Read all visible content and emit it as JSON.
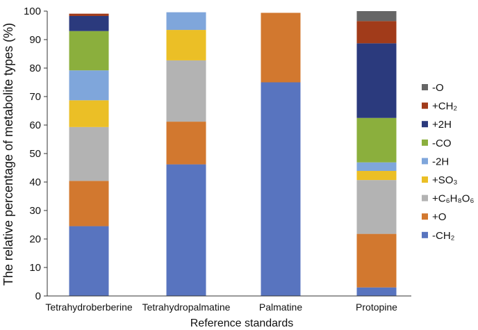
{
  "chart_data": {
    "type": "bar",
    "stacked": true,
    "title": "",
    "xlabel": "Reference standards",
    "ylabel": "The relative percentage of metabolite types (%)",
    "ylim": [
      0,
      100
    ],
    "yticks": [
      "0",
      "10",
      "20",
      "30",
      "40",
      "50",
      "60",
      "70",
      "80",
      "90",
      "100"
    ],
    "categories": [
      "Tetrahydroberberine",
      "Tetrahydropalmatine",
      "Palmatine",
      "Protopine"
    ],
    "legend_position": "right",
    "series": [
      {
        "name": "-CH₂",
        "color": "#5874BF",
        "values": [
          24.5,
          46.2,
          75.0,
          3.0
        ]
      },
      {
        "name": "+O",
        "color": "#D2782F",
        "values": [
          15.9,
          15.0,
          24.4,
          18.8
        ]
      },
      {
        "name": "+C₆H₈O₆",
        "color": "#B3B3B3",
        "values": [
          18.9,
          21.5,
          0,
          18.9
        ]
      },
      {
        "name": "+SO₃",
        "color": "#EBBF26",
        "values": [
          9.4,
          10.7,
          0,
          3.2
        ]
      },
      {
        "name": "-2H",
        "color": "#7FA6DB",
        "values": [
          10.5,
          6.2,
          0,
          3.0
        ]
      },
      {
        "name": "-CO",
        "color": "#8BAF3D",
        "values": [
          13.8,
          0,
          0,
          15.6
        ]
      },
      {
        "name": "+2H",
        "color": "#2B3A7D",
        "values": [
          5.3,
          0,
          0,
          26.2
        ]
      },
      {
        "name": "+CH₂",
        "color": "#A13B1A",
        "values": [
          0.8,
          0,
          0,
          7.8
        ]
      },
      {
        "name": "-O",
        "color": "#666666",
        "values": [
          0,
          0,
          0,
          3.5
        ]
      }
    ]
  }
}
